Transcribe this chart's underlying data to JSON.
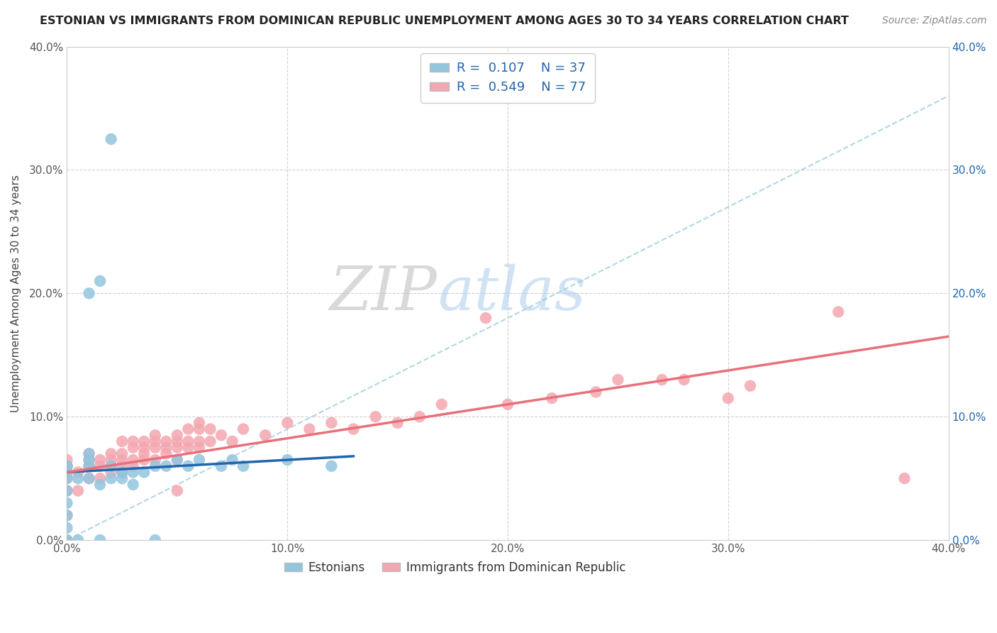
{
  "title": "ESTONIAN VS IMMIGRANTS FROM DOMINICAN REPUBLIC UNEMPLOYMENT AMONG AGES 30 TO 34 YEARS CORRELATION CHART",
  "source": "Source: ZipAtlas.com",
  "ylabel": "Unemployment Among Ages 30 to 34 years",
  "xlim": [
    0.0,
    0.4
  ],
  "ylim": [
    0.0,
    0.4
  ],
  "xticks": [
    0.0,
    0.1,
    0.2,
    0.3,
    0.4
  ],
  "yticks": [
    0.0,
    0.1,
    0.2,
    0.3,
    0.4
  ],
  "xticklabels": [
    "0.0%",
    "10.0%",
    "20.0%",
    "30.0%",
    "40.0%"
  ],
  "yticklabels": [
    "0.0%",
    "10.0%",
    "20.0%",
    "30.0%",
    "40.0%"
  ],
  "estonian_R": 0.107,
  "estonian_N": 37,
  "dominican_R": 0.549,
  "dominican_N": 77,
  "estonian_color": "#92C5DE",
  "dominican_color": "#F4A7B1",
  "estonian_line_color": "#2166AC",
  "dominican_line_color": "#E8707A",
  "estonian_dashed_color": "#92C5DE",
  "background_color": "#ffffff",
  "grid_color": "#cccccc",
  "estonian_scatter": [
    [
      0.0,
      0.0
    ],
    [
      0.0,
      0.01
    ],
    [
      0.0,
      0.02
    ],
    [
      0.0,
      0.03
    ],
    [
      0.0,
      0.04
    ],
    [
      0.0,
      0.05
    ],
    [
      0.0,
      0.06
    ],
    [
      0.0,
      0.06
    ],
    [
      0.005,
      0.0
    ],
    [
      0.005,
      0.05
    ],
    [
      0.01,
      0.05
    ],
    [
      0.01,
      0.06
    ],
    [
      0.01,
      0.065
    ],
    [
      0.01,
      0.07
    ],
    [
      0.015,
      0.0
    ],
    [
      0.015,
      0.045
    ],
    [
      0.02,
      0.05
    ],
    [
      0.02,
      0.06
    ],
    [
      0.025,
      0.05
    ],
    [
      0.025,
      0.055
    ],
    [
      0.03,
      0.045
    ],
    [
      0.03,
      0.055
    ],
    [
      0.035,
      0.055
    ],
    [
      0.04,
      0.0
    ],
    [
      0.04,
      0.06
    ],
    [
      0.045,
      0.06
    ],
    [
      0.05,
      0.065
    ],
    [
      0.055,
      0.06
    ],
    [
      0.06,
      0.065
    ],
    [
      0.07,
      0.06
    ],
    [
      0.075,
      0.065
    ],
    [
      0.08,
      0.06
    ],
    [
      0.01,
      0.2
    ],
    [
      0.015,
      0.21
    ],
    [
      0.02,
      0.325
    ],
    [
      0.1,
      0.065
    ],
    [
      0.12,
      0.06
    ]
  ],
  "dominican_scatter": [
    [
      0.0,
      0.0
    ],
    [
      0.0,
      0.02
    ],
    [
      0.0,
      0.04
    ],
    [
      0.0,
      0.05
    ],
    [
      0.0,
      0.055
    ],
    [
      0.0,
      0.06
    ],
    [
      0.0,
      0.065
    ],
    [
      0.005,
      0.04
    ],
    [
      0.005,
      0.055
    ],
    [
      0.01,
      0.05
    ],
    [
      0.01,
      0.06
    ],
    [
      0.01,
      0.065
    ],
    [
      0.01,
      0.07
    ],
    [
      0.015,
      0.05
    ],
    [
      0.015,
      0.06
    ],
    [
      0.015,
      0.065
    ],
    [
      0.02,
      0.055
    ],
    [
      0.02,
      0.06
    ],
    [
      0.02,
      0.065
    ],
    [
      0.02,
      0.07
    ],
    [
      0.025,
      0.055
    ],
    [
      0.025,
      0.06
    ],
    [
      0.025,
      0.065
    ],
    [
      0.025,
      0.07
    ],
    [
      0.025,
      0.08
    ],
    [
      0.03,
      0.06
    ],
    [
      0.03,
      0.065
    ],
    [
      0.03,
      0.075
    ],
    [
      0.03,
      0.08
    ],
    [
      0.035,
      0.065
    ],
    [
      0.035,
      0.07
    ],
    [
      0.035,
      0.075
    ],
    [
      0.035,
      0.08
    ],
    [
      0.04,
      0.065
    ],
    [
      0.04,
      0.075
    ],
    [
      0.04,
      0.08
    ],
    [
      0.04,
      0.085
    ],
    [
      0.045,
      0.07
    ],
    [
      0.045,
      0.075
    ],
    [
      0.045,
      0.08
    ],
    [
      0.05,
      0.04
    ],
    [
      0.05,
      0.065
    ],
    [
      0.05,
      0.075
    ],
    [
      0.05,
      0.08
    ],
    [
      0.05,
      0.085
    ],
    [
      0.055,
      0.075
    ],
    [
      0.055,
      0.08
    ],
    [
      0.055,
      0.09
    ],
    [
      0.06,
      0.075
    ],
    [
      0.06,
      0.08
    ],
    [
      0.06,
      0.09
    ],
    [
      0.06,
      0.095
    ],
    [
      0.065,
      0.08
    ],
    [
      0.065,
      0.09
    ],
    [
      0.07,
      0.085
    ],
    [
      0.075,
      0.08
    ],
    [
      0.08,
      0.09
    ],
    [
      0.09,
      0.085
    ],
    [
      0.1,
      0.095
    ],
    [
      0.11,
      0.09
    ],
    [
      0.12,
      0.095
    ],
    [
      0.13,
      0.09
    ],
    [
      0.14,
      0.1
    ],
    [
      0.15,
      0.095
    ],
    [
      0.16,
      0.1
    ],
    [
      0.17,
      0.11
    ],
    [
      0.19,
      0.18
    ],
    [
      0.2,
      0.11
    ],
    [
      0.22,
      0.115
    ],
    [
      0.24,
      0.12
    ],
    [
      0.25,
      0.13
    ],
    [
      0.27,
      0.13
    ],
    [
      0.28,
      0.13
    ],
    [
      0.3,
      0.115
    ],
    [
      0.31,
      0.125
    ],
    [
      0.35,
      0.185
    ],
    [
      0.38,
      0.05
    ]
  ],
  "estonian_line": {
    "x0": 0.0,
    "x1": 0.13,
    "y0": 0.055,
    "y1": 0.068
  },
  "dominican_line": {
    "x0": 0.0,
    "x1": 0.4,
    "y0": 0.055,
    "y1": 0.165
  },
  "estonian_dashed_line": {
    "x0": 0.0,
    "x1": 0.4,
    "y0": 0.0,
    "y1": 0.36
  }
}
